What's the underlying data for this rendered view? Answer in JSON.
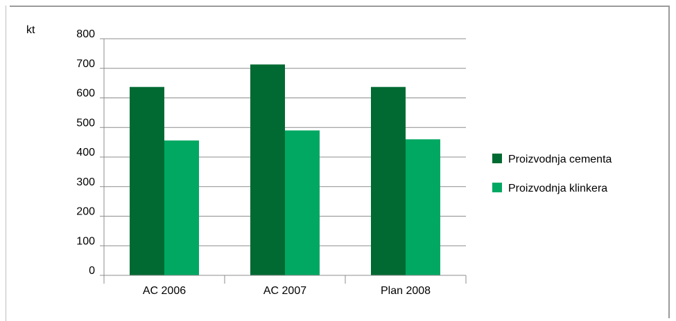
{
  "chart_data": {
    "type": "bar",
    "unit_label": "kt",
    "categories": [
      "AC 2006",
      "AC 2007",
      "Plan 2008"
    ],
    "series": [
      {
        "name": "Proizvodnja cementa",
        "values": [
          637,
          713,
          637
        ],
        "color": "#006a32"
      },
      {
        "name": "Proizvodnja klinkera",
        "values": [
          456,
          490,
          460
        ],
        "color": "#00a862"
      }
    ],
    "yticks": [
      "0",
      "100",
      "200",
      "300",
      "400",
      "500",
      "600",
      "700",
      "800"
    ],
    "ylim": [
      0,
      800
    ],
    "grid": true,
    "legend_position": "right"
  }
}
